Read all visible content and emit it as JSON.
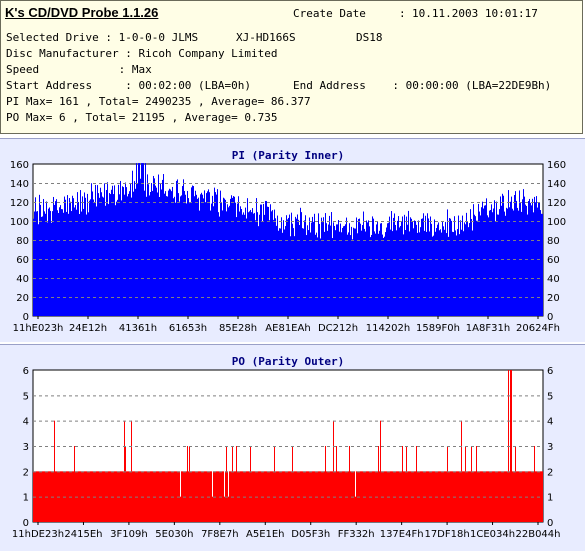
{
  "header": {
    "app_title": "K's CD/DVD Probe 1.1.26",
    "create_date_label": "Create Date",
    "create_date_value": "10.11.2003 10:01:17",
    "selected_drive_label": "Selected Drive",
    "selected_drive_value": "1-0-0-0 JLMS",
    "drive_model": "XJ-HD166S",
    "drive_firmware": "DS18",
    "disc_manufacturer_label": "Disc Manufacturer",
    "disc_manufacturer_value": "Ricoh Company Limited",
    "speed_label": "Speed",
    "speed_value": "Max",
    "start_address_label": "Start Address",
    "start_address_value": "00:02:00 (LBA=0h)",
    "end_address_label": "End Address",
    "end_address_value": "00:00:00 (LBA=22DE9Bh)",
    "pi_summary": "PI Max= 161 , Total= 2490235 , Average= 86.377",
    "po_summary": "PO Max= 6 , Total= 21195 , Average= 0.735"
  },
  "colors": {
    "header_bg": "#fffee6",
    "panel_bg": "#e8ecff",
    "plot_bg": "#ffffff",
    "title_color": "#000080",
    "pi_bar": "#0000ff",
    "po_bar": "#ff0000",
    "grid": "#808080"
  },
  "chart_data": [
    {
      "type": "bar",
      "title": "PI (Parity Inner)",
      "xlabel": "",
      "ylabel": "",
      "ylim": [
        0,
        160
      ],
      "yticks": [
        0,
        20,
        40,
        60,
        80,
        100,
        120,
        140,
        160
      ],
      "grid": true,
      "x_tick_labels": [
        "11hE023h",
        "24E12h",
        "41361h",
        "61653h",
        "85E28h",
        "AE81EAh",
        "DC212h",
        "114202h",
        "1589F0h",
        "1A8F31h",
        "20624Fh"
      ],
      "profile": {
        "x": [
          0.0,
          0.05,
          0.1,
          0.15,
          0.2,
          0.25,
          0.3,
          0.35,
          0.4,
          0.45,
          0.5,
          0.55,
          0.6,
          0.65,
          0.7,
          0.75,
          0.8,
          0.85,
          0.9,
          0.95,
          1.0
        ],
        "y": [
          115,
          120,
          124,
          134,
          142,
          140,
          134,
          124,
          118,
          112,
          104,
          100,
          100,
          100,
          102,
          106,
          98,
          105,
          118,
          128,
          120
        ]
      },
      "max": 161
    },
    {
      "type": "bar",
      "title": "PO (Parity Outer)",
      "xlabel": "",
      "ylabel": "",
      "ylim": [
        0,
        6
      ],
      "yticks": [
        0,
        1,
        2,
        3,
        4,
        5,
        6
      ],
      "grid": true,
      "x_tick_labels": [
        "11hDE23h",
        "2415Eh",
        "3F109h",
        "5E030h",
        "7F8E7h",
        "A5E1Eh",
        "D05F3h",
        "FF332h",
        "137E4Fh",
        "17DF18h",
        "1CE034h",
        "22B044h"
      ],
      "baseline": 2,
      "max": 6
    }
  ]
}
